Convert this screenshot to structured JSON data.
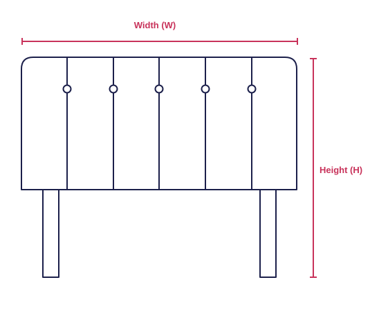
{
  "labels": {
    "width": "Width (W)",
    "height": "Height (H)"
  },
  "colors": {
    "outline": "#1b1f4a",
    "dimension": "#c8325a",
    "background": "#ffffff"
  }
}
